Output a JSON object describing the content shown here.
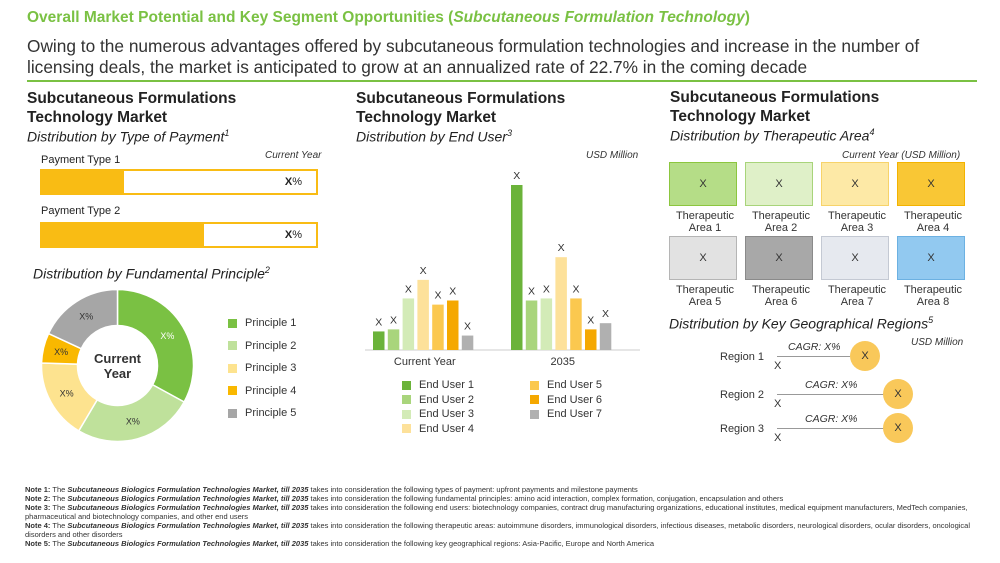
{
  "header": {
    "title_main": "Overall Market Potential and Key Segment Opportunities (",
    "title_italic": "Subcutaneous Formulation Technology",
    "title_end": ")",
    "subtitle": "Owing to the numerous advantages offered by subcutaneous formulation technologies and increase in the number of licensing deals, the market is anticipated to grow at an annualized rate of 22.7% in the coming decade"
  },
  "panel1": {
    "title": "Subcutaneous Formulations Technology Market",
    "subtitle": "Distribution by Type of Payment",
    "subtitle_sup": "1",
    "note": "Current Year",
    "bars": [
      {
        "label": "Payment Type 1",
        "value_text": "X",
        "value_unit": "%",
        "fill_pct": 30
      },
      {
        "label": "Payment Type 2",
        "value_text": "X",
        "value_unit": "%",
        "fill_pct": 59
      }
    ]
  },
  "panel1b": {
    "subtitle": "Distribution by Fundamental Principle",
    "subtitle_sup": "2",
    "center_label_1": "Current",
    "center_label_2": "Year"
  },
  "panel2": {
    "title": "Subcutaneous Formulations Technology Market",
    "subtitle": "Distribution by End User",
    "subtitle_sup": "3",
    "note": "USD Million"
  },
  "panel3": {
    "title": "Subcutaneous Formulations Technology Market",
    "subtitle": "Distribution by Therapeutic Area",
    "subtitle_sup": "4",
    "note": "Current Year (USD Million)",
    "areas": [
      {
        "line1": "Therapeutic",
        "line2": "Area 1",
        "value": "X",
        "fill": "#b5dd87",
        "border": "#8cc63f"
      },
      {
        "line1": "Therapeutic",
        "line2": "Area 2",
        "value": "X",
        "fill": "#dff0c8",
        "border": "#a8d47a"
      },
      {
        "line1": "Therapeutic",
        "line2": "Area 3",
        "value": "X",
        "fill": "#fde9a6",
        "border": "#f7d36a"
      },
      {
        "line1": "Therapeutic",
        "line2": "Area 4",
        "value": "X",
        "fill": "#f9c735",
        "border": "#f3b300"
      },
      {
        "line1": "Therapeutic",
        "line2": "Area 5",
        "value": "X",
        "fill": "#e2e2e2",
        "border": "#b5b5b5"
      },
      {
        "line1": "Therapeutic",
        "line2": "Area 6",
        "value": "X",
        "fill": "#a8a8a8",
        "border": "#8a8a8a"
      },
      {
        "line1": "Therapeutic",
        "line2": "Area 7",
        "value": "X",
        "fill": "#e6e9ef",
        "border": "#c4c9d3"
      },
      {
        "line1": "Therapeutic",
        "line2": "Area 8",
        "value": "X",
        "fill": "#92c9f0",
        "border": "#6cb1e2"
      }
    ]
  },
  "panel3b": {
    "subtitle": "Distribution by Key Geographical Regions",
    "subtitle_sup": "5",
    "note": "USD Million",
    "regions": [
      {
        "label": "Region 1",
        "cagr": "CAGR: X%",
        "value": "X",
        "x_mark": "X"
      },
      {
        "label": "Region 2",
        "cagr": "CAGR: X%",
        "value": "X",
        "x_mark": "X"
      },
      {
        "label": "Region 3",
        "cagr": "CAGR: X%",
        "value": "X",
        "x_mark": "X"
      }
    ]
  },
  "chart_data": [
    {
      "type": "pie",
      "title": "Distribution by Fundamental Principle",
      "categories": [
        "Principle 1",
        "Principle 2",
        "Principle 3",
        "Principle 4",
        "Principle 5"
      ],
      "values": [
        31,
        24,
        16,
        6,
        17
      ],
      "slice_labels": [
        "X%",
        "X%",
        "X%",
        "X%",
        "X%"
      ],
      "colors": [
        "#7ac143",
        "#bfe19b",
        "#fde38f",
        "#f9b800",
        "#a6a6a6"
      ],
      "center_label": "Current Year",
      "legend": "right"
    },
    {
      "type": "bar",
      "title": "Distribution by End User",
      "categories": [
        "Current Year",
        "2035"
      ],
      "series": [
        {
          "name": "End User 1",
          "color": "#6bb33a",
          "values": [
            9,
            80
          ]
        },
        {
          "name": "End User 2",
          "color": "#a9d57c",
          "values": [
            10,
            24
          ]
        },
        {
          "name": "End User 3",
          "color": "#d3ebb7",
          "values": [
            25,
            25
          ]
        },
        {
          "name": "End User 4",
          "color": "#fde19a",
          "values": [
            34,
            45
          ]
        },
        {
          "name": "End User 5",
          "color": "#fbc84f",
          "values": [
            22,
            25
          ]
        },
        {
          "name": "End User 6",
          "color": "#f5a800",
          "values": [
            24,
            10
          ]
        },
        {
          "name": "End User 7",
          "color": "#b0b0b0",
          "values": [
            7,
            13
          ]
        }
      ],
      "data_label": "X",
      "legend": "bottom"
    }
  ],
  "notes": [
    {
      "lead": "Note 1:",
      "pre": " The ",
      "ital": "Subcutaneous Biologics Formulation Technologies Market, till 2035",
      "post": " takes into consideration the following types of payment: upfront payments and milestone payments"
    },
    {
      "lead": "Note 2:",
      "pre": " The ",
      "ital": "Subcutaneous Biologics Formulation Technologies Market, till 2035",
      "post": " takes into consideration the following fundamental principles: amino acid interaction, complex formation, conjugation, encapsulation and others"
    },
    {
      "lead": "Note 3:",
      "pre": " The ",
      "ital": "Subcutaneous Biologics Formulation Technologies Market, till 2035",
      "post": " takes into consideration the following end users: biotechnology companies, contract drug manufacturing organizations, educational institutes, medical equipment manufacturers, MedTech companies, pharmaceutical and biotechnology companies, and other end users"
    },
    {
      "lead": "Note 4:",
      "pre": " The ",
      "ital": "Subcutaneous Biologics Formulation Technologies Market, till 2035",
      "post": " takes into consideration the following therapeutic areas: autoimmune disorders, immunological disorders, infectious diseases, metabolic disorders, neurological disorders, ocular disorders, oncological disorders and other disorders"
    },
    {
      "lead": "Note 5:",
      "pre": " The ",
      "ital": "Subcutaneous Biologics Formulation Technologies Market, till 2035",
      "post": " takes into consideration the following key geographical regions: Asia-Pacific, Europe and North America"
    }
  ]
}
